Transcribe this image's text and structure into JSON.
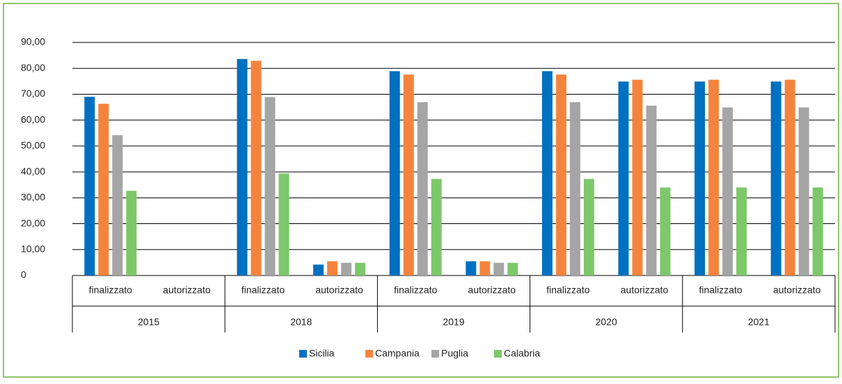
{
  "chart_data": {
    "type": "bar",
    "groups": [
      {
        "name": "2015",
        "categories": [
          "finalizzato",
          "autorizzato"
        ]
      },
      {
        "name": "2018",
        "categories": [
          "finalizzato",
          "autorizzato"
        ]
      },
      {
        "name": "2019",
        "categories": [
          "finalizzato",
          "autorizzato"
        ]
      },
      {
        "name": "2020",
        "categories": [
          "finalizzato",
          "autorizzato"
        ]
      },
      {
        "name": "2021",
        "categories": [
          "finalizzato",
          "autorizzato"
        ]
      }
    ],
    "series": [
      {
        "name": "Sicilia",
        "color": "#0070c0",
        "values": [
          69,
          null,
          83.6,
          4.2,
          78.9,
          5.5,
          78.9,
          74.9,
          74.9,
          74.9
        ]
      },
      {
        "name": "Campania",
        "color": "#f4843d",
        "values": [
          66.3,
          null,
          82.9,
          5.5,
          77.6,
          5.5,
          77.6,
          75.6,
          75.6,
          75.6
        ]
      },
      {
        "name": "Puglia",
        "color": "#a5a5a5",
        "values": [
          54.2,
          null,
          68.9,
          4.9,
          66.9,
          4.9,
          66.9,
          65.6,
          64.9,
          64.9
        ]
      },
      {
        "name": "Calabria",
        "color": "#7dc86a",
        "values": [
          32.7,
          null,
          39.4,
          4.9,
          37.3,
          4.9,
          37.3,
          34.0,
          34.0,
          34.0
        ]
      }
    ],
    "ylim": [
      0,
      90
    ],
    "yticks": [
      0,
      {
        "value": 10,
        "label": "10,00"
      },
      {
        "value": 20,
        "label": "20,00"
      },
      {
        "value": 30,
        "label": "30,00"
      },
      {
        "value": 40,
        "label": "40,00"
      },
      {
        "value": 50,
        "label": "50,00"
      },
      {
        "value": 60,
        "label": "60,00"
      },
      {
        "value": 70,
        "label": "70,00"
      },
      {
        "value": 80,
        "label": "80,00"
      },
      {
        "value": 90,
        "label": "90,00"
      }
    ],
    "grid": true,
    "legend": "bottom"
  }
}
